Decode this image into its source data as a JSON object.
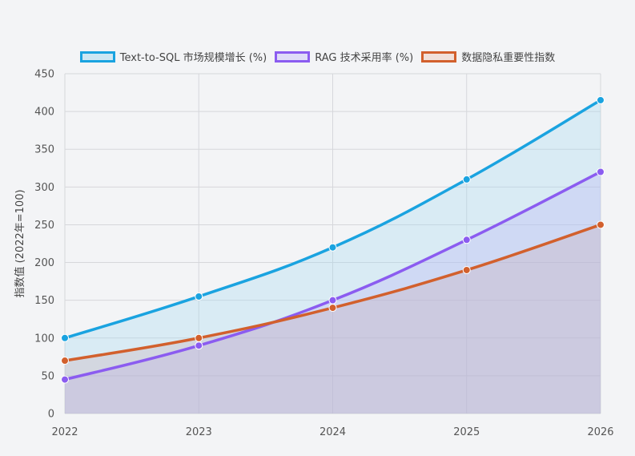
{
  "chart_data": {
    "type": "area",
    "title": "",
    "xlabel": "",
    "ylabel": "指数值 (2022年=100)",
    "categories": [
      "2022",
      "2023",
      "2024",
      "2025",
      "2026"
    ],
    "ylim": [
      0,
      450
    ],
    "yticks": [
      0,
      50,
      100,
      150,
      200,
      250,
      300,
      350,
      400,
      450
    ],
    "grid": true,
    "legend_position": "top",
    "series": [
      {
        "name": "Text-to-SQL 市场规模增长 (%)",
        "values": [
          100,
          155,
          220,
          310,
          415
        ],
        "color": "#1aa3e0",
        "fill": "rgba(160,215,240,0.30)"
      },
      {
        "name": "RAG 技术采用率 (%)",
        "values": [
          45,
          90,
          150,
          230,
          320
        ],
        "color": "#8b5cf0",
        "fill": "rgba(185,175,245,0.30)"
      },
      {
        "name": "数据隐私重要性指数",
        "values": [
          70,
          100,
          140,
          190,
          250
        ],
        "color": "#d2602d",
        "fill": "rgba(200,170,180,0.30)"
      }
    ]
  }
}
